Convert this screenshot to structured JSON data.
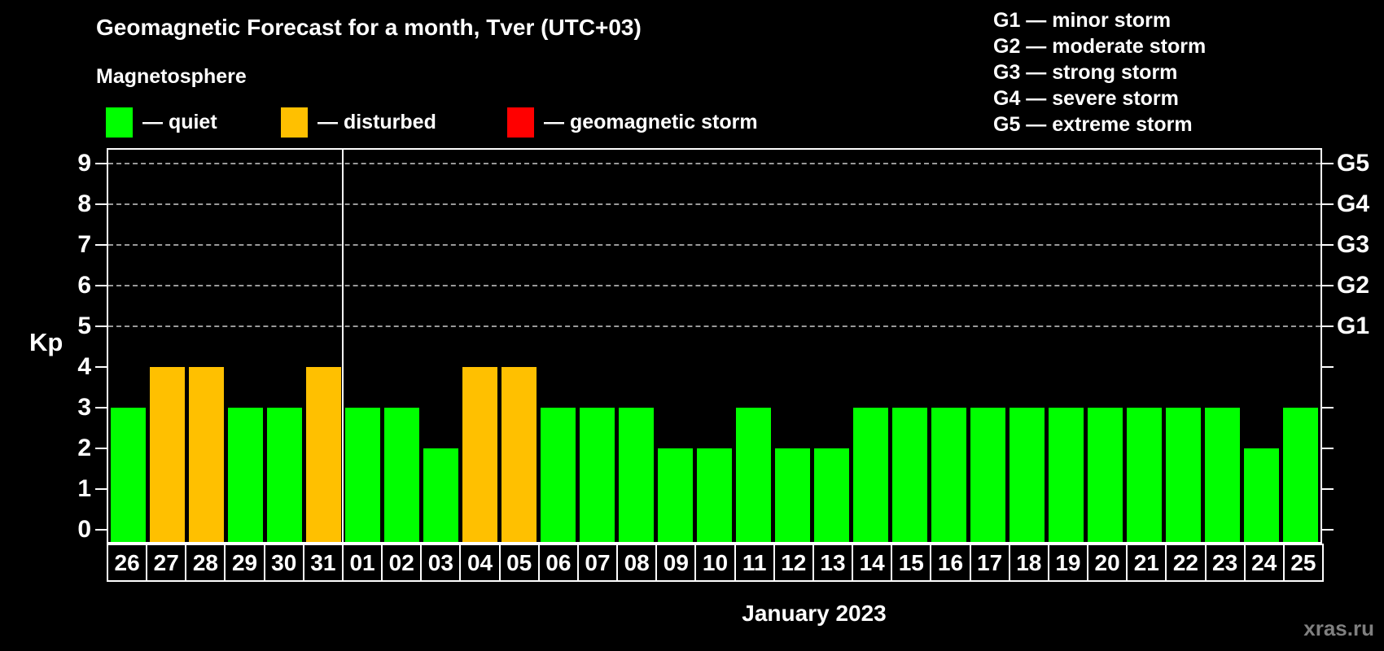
{
  "title": "Geomagnetic Forecast for a month, Tver (UTC+03)",
  "subtitle": "Magnetosphere",
  "status_legend": [
    {
      "key": "quiet",
      "label": "— quiet",
      "color": "#00ff00"
    },
    {
      "key": "disturbed",
      "label": "— disturbed",
      "color": "#ffc000"
    },
    {
      "key": "storm",
      "label": "— geomagnetic storm",
      "color": "#ff0000"
    }
  ],
  "g_scale_legend": [
    "G1 — minor storm",
    "G2 — moderate storm",
    "G3 — strong storm",
    "G4 — severe storm",
    "G5 — extreme storm"
  ],
  "y_axis": {
    "label": "Kp",
    "ticks": [
      9,
      8,
      7,
      6,
      5,
      4,
      3,
      2,
      1,
      0
    ]
  },
  "right_axis": {
    "labels": [
      {
        "text": "G5",
        "kp": 9
      },
      {
        "text": "G4",
        "kp": 8
      },
      {
        "text": "G3",
        "kp": 7
      },
      {
        "text": "G2",
        "kp": 6
      },
      {
        "text": "G1",
        "kp": 5
      }
    ]
  },
  "x_axis_title": "January 2023",
  "watermark": "xras.ru",
  "chart_data": {
    "type": "bar",
    "title": "Geomagnetic Forecast for a month, Tver (UTC+03)",
    "ylabel": "Kp",
    "ylim": [
      0,
      9.6
    ],
    "grid": "dashed horizontal at Kp 5-9 (G1-G5)",
    "grid_levels_kp": [
      5,
      6,
      7,
      8,
      9
    ],
    "month_separator_after_index": 5,
    "categories": [
      "26",
      "27",
      "28",
      "29",
      "30",
      "31",
      "01",
      "02",
      "03",
      "04",
      "05",
      "06",
      "07",
      "08",
      "09",
      "10",
      "11",
      "12",
      "13",
      "14",
      "15",
      "16",
      "17",
      "18",
      "19",
      "20",
      "21",
      "22",
      "23",
      "24",
      "25"
    ],
    "series": [
      {
        "name": "Kp forecast",
        "values": [
          3,
          4,
          4,
          3,
          3,
          4,
          3,
          3,
          2,
          4,
          4,
          3,
          3,
          3,
          2,
          2,
          3,
          2,
          2,
          3,
          3,
          3,
          3,
          3,
          3,
          3,
          3,
          3,
          3,
          2,
          3
        ]
      }
    ],
    "states": [
      "quiet",
      "disturbed",
      "disturbed",
      "quiet",
      "quiet",
      "disturbed",
      "quiet",
      "quiet",
      "quiet",
      "disturbed",
      "disturbed",
      "quiet",
      "quiet",
      "quiet",
      "quiet",
      "quiet",
      "quiet",
      "quiet",
      "quiet",
      "quiet",
      "quiet",
      "quiet",
      "quiet",
      "quiet",
      "quiet",
      "quiet",
      "quiet",
      "quiet",
      "quiet",
      "quiet",
      "quiet"
    ]
  }
}
